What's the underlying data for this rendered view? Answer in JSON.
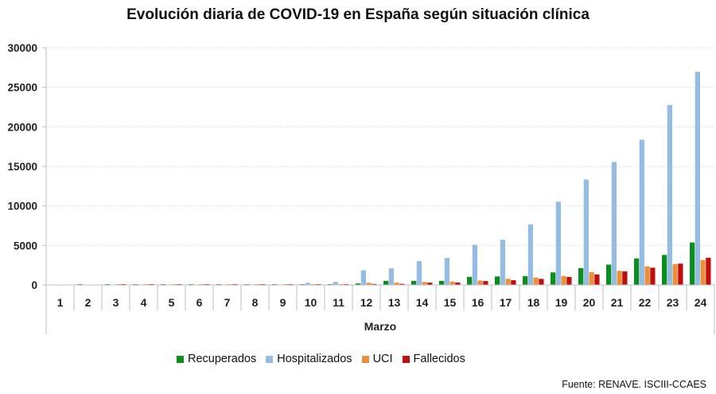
{
  "chart_data": {
    "type": "bar",
    "title": "Evolución diaria de COVID-19 en España según situación clínica",
    "xlabel": "Marzo",
    "ylabel": "",
    "ylim": [
      0,
      30000
    ],
    "yticks": [
      0,
      5000,
      10000,
      15000,
      20000,
      25000,
      30000
    ],
    "grid": true,
    "legend_position": "bottom",
    "categories": [
      "1",
      "2",
      "3",
      "4",
      "5",
      "6",
      "7",
      "8",
      "9",
      "10",
      "11",
      "12",
      "13",
      "14",
      "15",
      "16",
      "17",
      "18",
      "19",
      "20",
      "21",
      "22",
      "23",
      "24"
    ],
    "series": [
      {
        "name": "Recuperados",
        "color": "#0a8f1e",
        "values": [
          0,
          2,
          2,
          2,
          2,
          2,
          2,
          2,
          30,
          30,
          50,
          190,
          517,
          517,
          517,
          1028,
          1081,
          1107,
          1588,
          2125,
          2575,
          3355,
          3794,
          5367
        ]
      },
      {
        "name": "Hospitalizados",
        "color": "#95bde3",
        "values": [
          0,
          0,
          0,
          0,
          0,
          0,
          0,
          0,
          0,
          272,
          383,
          1859,
          2100,
          3025,
          3428,
          5085,
          5718,
          7659,
          10542,
          13331,
          15554,
          18374,
          22762,
          26960
        ]
      },
      {
        "name": "UCI",
        "color": "#ea8f3c",
        "values": [
          0,
          0,
          2,
          2,
          2,
          2,
          2,
          2,
          30,
          50,
          70,
          272,
          293,
          382,
          432,
          561,
          774,
          939,
          1141,
          1630,
          1785,
          2355,
          2636,
          3166
        ]
      },
      {
        "name": "Fallecidos",
        "color": "#c00d0d",
        "values": [
          0,
          0,
          2,
          2,
          2,
          2,
          2,
          2,
          10,
          35,
          55,
          120,
          136,
          288,
          309,
          491,
          598,
          767,
          1002,
          1326,
          1720,
          2182,
          2696,
          3434
        ]
      }
    ]
  },
  "footer": {
    "source": "Fuente: RENAVE. ISCIII-CCAES"
  }
}
